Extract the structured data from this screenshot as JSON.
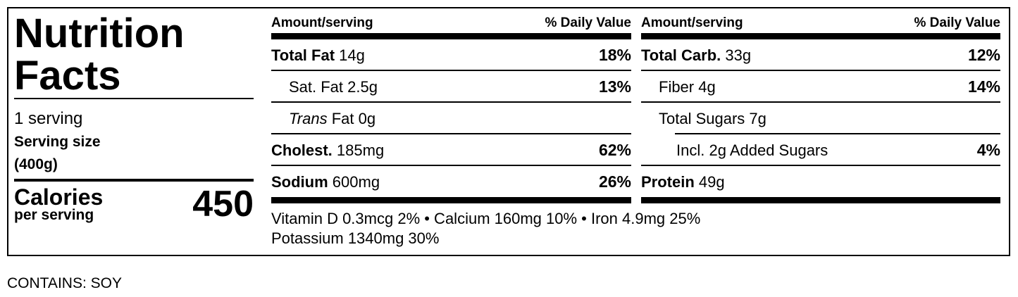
{
  "title_line1": "Nutrition",
  "title_line2": "Facts",
  "servings": "1 serving",
  "serving_size_label": "Serving size",
  "serving_size_value": "(400g)",
  "calories_label": "Calories",
  "calories_sub": "per serving",
  "calories_value": "450",
  "header": {
    "amount": "Amount/serving",
    "dv": "% Daily Value"
  },
  "left_rows": [
    {
      "name": "Total Fat",
      "amount": "14g",
      "dv": "18%"
    },
    {
      "name": "Sat. Fat",
      "amount": "2.5g",
      "dv": "13%"
    },
    {
      "name": "Trans",
      "amount": "Fat 0g",
      "dv": ""
    },
    {
      "name": "Cholest.",
      "amount": "185mg",
      "dv": "62%"
    },
    {
      "name": "Sodium",
      "amount": "600mg",
      "dv": "26%"
    }
  ],
  "right_rows": [
    {
      "name": "Total Carb.",
      "amount": "33g",
      "dv": "12%"
    },
    {
      "name": "Fiber",
      "amount": "4g",
      "dv": "14%"
    },
    {
      "name": "Total Sugars",
      "amount": "7g",
      "dv": ""
    },
    {
      "name": "Incl. 2g Added Sugars",
      "amount": "",
      "dv": "4%"
    },
    {
      "name": "Protein",
      "amount": "49g",
      "dv": ""
    }
  ],
  "vitamins_line1": "Vitamin D 0.3mcg 2% • Calcium 160mg 10% • Iron 4.9mg 25%",
  "vitamins_line2": "Potassium 1340mg 30%",
  "contains": "CONTAINS: SOY"
}
